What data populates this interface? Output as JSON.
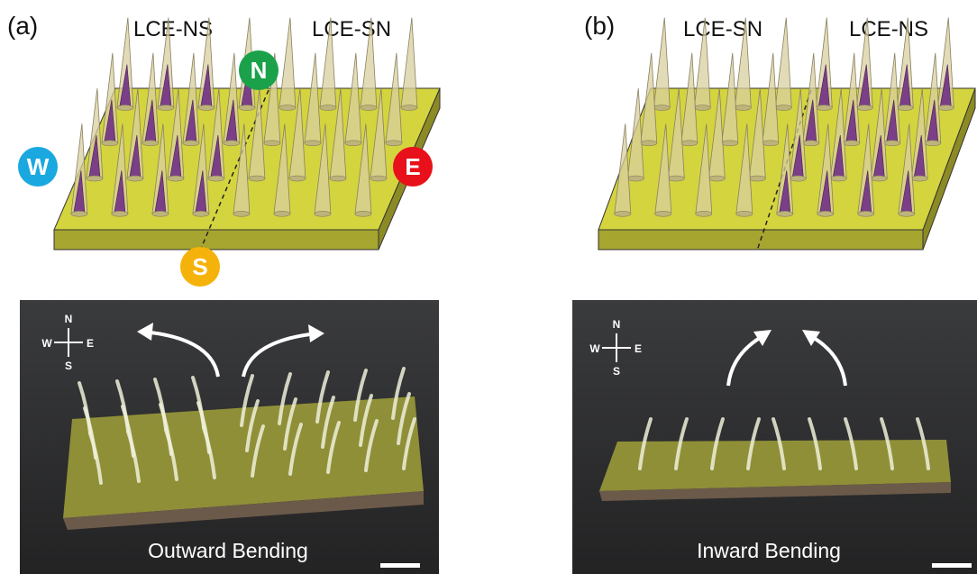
{
  "panels": [
    {
      "label": "(a)",
      "left_title": "LCE-NS",
      "right_title": "LCE-SN",
      "directions": {
        "north": "N",
        "west": "W",
        "east": "E",
        "south": "S"
      },
      "photo": {
        "compass": {
          "north": "N",
          "west": "W",
          "east": "E",
          "south": "S"
        },
        "caption": "Outward Bending"
      }
    },
    {
      "label": "(b)",
      "left_title": "LCE-SN",
      "right_title": "LCE-NS",
      "photo": {
        "compass": {
          "north": "N",
          "west": "W",
          "east": "E",
          "south": "S"
        },
        "caption": "Inward Bending"
      }
    }
  ]
}
